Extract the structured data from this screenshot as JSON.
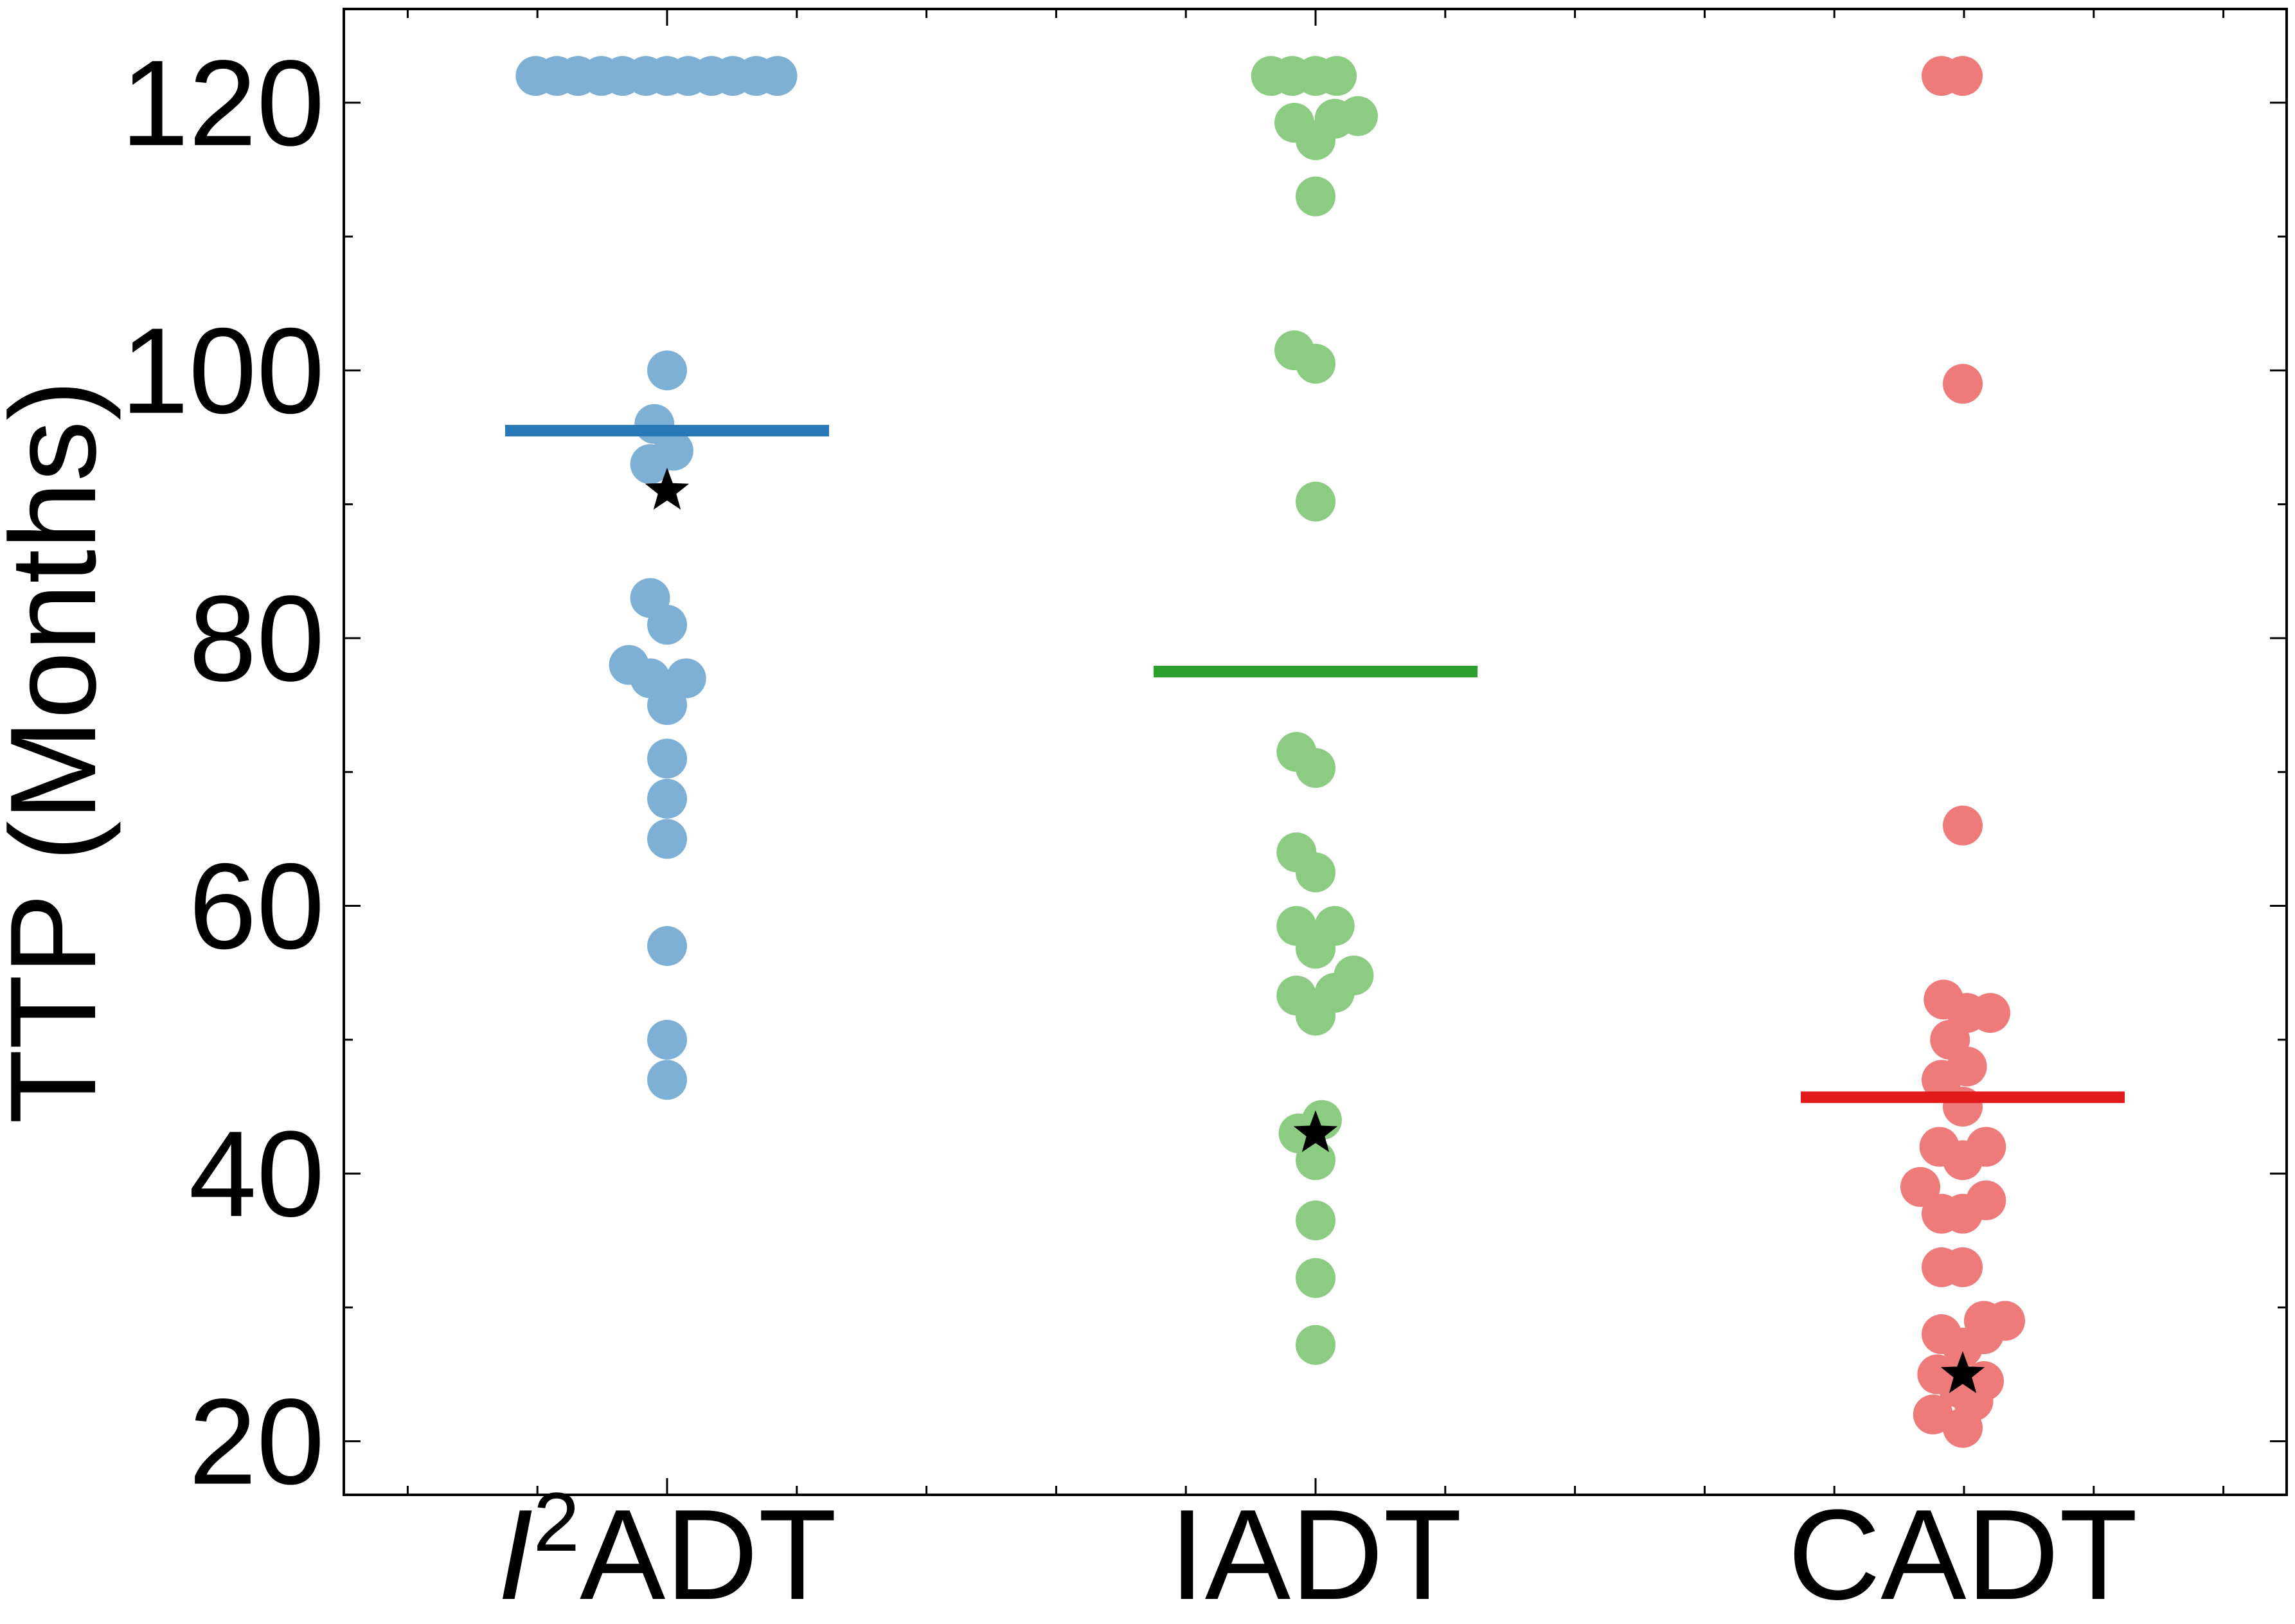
{
  "chart_data": {
    "type": "scatter",
    "title": "",
    "xlabel": "",
    "ylabel": "TTP (Months)",
    "ylim": [
      16,
      127
    ],
    "yticks": [
      20,
      40,
      60,
      80,
      100,
      120
    ],
    "grid": false,
    "legend": "none",
    "categories": [
      {
        "prefix": "I",
        "sup": "2",
        "suffix": "ADT"
      },
      {
        "prefix": "",
        "sup": "",
        "suffix": "IADT"
      },
      {
        "prefix": "",
        "sup": "",
        "suffix": "CADT"
      }
    ],
    "series": [
      {
        "category_index": 0,
        "point_color": "#7eb0d6",
        "line_color": "#2878b5",
        "mean": 95.5,
        "star": 91,
        "points": [
          {
            "offset": -3.1,
            "y": 122
          },
          {
            "offset": -2.6,
            "y": 122
          },
          {
            "offset": -2.1,
            "y": 122
          },
          {
            "offset": -1.55,
            "y": 122
          },
          {
            "offset": -1.05,
            "y": 122
          },
          {
            "offset": -0.5,
            "y": 122
          },
          {
            "offset": 0,
            "y": 122
          },
          {
            "offset": 0.5,
            "y": 122
          },
          {
            "offset": 1.05,
            "y": 122
          },
          {
            "offset": 1.55,
            "y": 122
          },
          {
            "offset": 2.1,
            "y": 122
          },
          {
            "offset": 2.6,
            "y": 122
          },
          {
            "offset": 0,
            "y": 100
          },
          {
            "offset": -0.3,
            "y": 96
          },
          {
            "offset": 0.15,
            "y": 94
          },
          {
            "offset": -0.4,
            "y": 93
          },
          {
            "offset": -0.4,
            "y": 83
          },
          {
            "offset": 0,
            "y": 81
          },
          {
            "offset": -0.9,
            "y": 78
          },
          {
            "offset": -0.4,
            "y": 77
          },
          {
            "offset": 0.45,
            "y": 77
          },
          {
            "offset": 0,
            "y": 75
          },
          {
            "offset": 0,
            "y": 71
          },
          {
            "offset": 0,
            "y": 68
          },
          {
            "offset": 0,
            "y": 65
          },
          {
            "offset": 0,
            "y": 57
          },
          {
            "offset": 0,
            "y": 50
          },
          {
            "offset": 0,
            "y": 47
          }
        ]
      },
      {
        "category_index": 1,
        "point_color": "#8ccb82",
        "line_color": "#2ca02c",
        "mean": 77.5,
        "star": 43,
        "points": [
          {
            "offset": -1.05,
            "y": 122
          },
          {
            "offset": -0.55,
            "y": 122
          },
          {
            "offset": 0,
            "y": 122
          },
          {
            "offset": 0.5,
            "y": 122
          },
          {
            "offset": 1.0,
            "y": 119
          },
          {
            "offset": 0.45,
            "y": 118.8
          },
          {
            "offset": -0.5,
            "y": 118.5
          },
          {
            "offset": 0,
            "y": 117.2
          },
          {
            "offset": 0,
            "y": 113
          },
          {
            "offset": -0.5,
            "y": 101.5
          },
          {
            "offset": 0,
            "y": 100.5
          },
          {
            "offset": 0,
            "y": 90.2
          },
          {
            "offset": -0.45,
            "y": 71.5
          },
          {
            "offset": 0,
            "y": 70.3
          },
          {
            "offset": -0.45,
            "y": 64
          },
          {
            "offset": 0,
            "y": 62.5
          },
          {
            "offset": -0.45,
            "y": 58.5
          },
          {
            "offset": 0.45,
            "y": 58.5
          },
          {
            "offset": 0,
            "y": 56.8
          },
          {
            "offset": 0.9,
            "y": 54.8
          },
          {
            "offset": -0.45,
            "y": 53.3
          },
          {
            "offset": 0.45,
            "y": 53.5
          },
          {
            "offset": 0,
            "y": 51.8
          },
          {
            "offset": 0.15,
            "y": 44
          },
          {
            "offset": -0.4,
            "y": 43
          },
          {
            "offset": 0,
            "y": 41
          },
          {
            "offset": 0,
            "y": 36.5
          },
          {
            "offset": 0,
            "y": 32.2
          },
          {
            "offset": 0,
            "y": 27.2
          }
        ]
      },
      {
        "category_index": 2,
        "point_color": "#ee7a7a",
        "line_color": "#e31a1c",
        "mean": 45.7,
        "star": 25,
        "points": [
          {
            "offset": -0.5,
            "y": 122
          },
          {
            "offset": 0,
            "y": 122
          },
          {
            "offset": 0,
            "y": 99
          },
          {
            "offset": 0,
            "y": 66
          },
          {
            "offset": -0.45,
            "y": 53
          },
          {
            "offset": 0.1,
            "y": 52
          },
          {
            "offset": 0.65,
            "y": 52
          },
          {
            "offset": -0.3,
            "y": 50
          },
          {
            "offset": 0.1,
            "y": 48
          },
          {
            "offset": -0.5,
            "y": 47
          },
          {
            "offset": 0,
            "y": 45
          },
          {
            "offset": -0.55,
            "y": 42
          },
          {
            "offset": 0.55,
            "y": 42
          },
          {
            "offset": 0,
            "y": 41
          },
          {
            "offset": -1.0,
            "y": 39
          },
          {
            "offset": 0.55,
            "y": 38
          },
          {
            "offset": -0.5,
            "y": 37
          },
          {
            "offset": 0,
            "y": 37
          },
          {
            "offset": -0.5,
            "y": 33
          },
          {
            "offset": 0,
            "y": 33
          },
          {
            "offset": 0.5,
            "y": 29
          },
          {
            "offset": 1.0,
            "y": 29
          },
          {
            "offset": -0.5,
            "y": 28
          },
          {
            "offset": 0.5,
            "y": 28
          },
          {
            "offset": 0,
            "y": 27
          },
          {
            "offset": -0.6,
            "y": 25
          },
          {
            "offset": 0.5,
            "y": 24.5
          },
          {
            "offset": -0.1,
            "y": 24
          },
          {
            "offset": 0.25,
            "y": 23
          },
          {
            "offset": -0.7,
            "y": 22
          },
          {
            "offset": 0,
            "y": 21
          }
        ]
      }
    ]
  }
}
